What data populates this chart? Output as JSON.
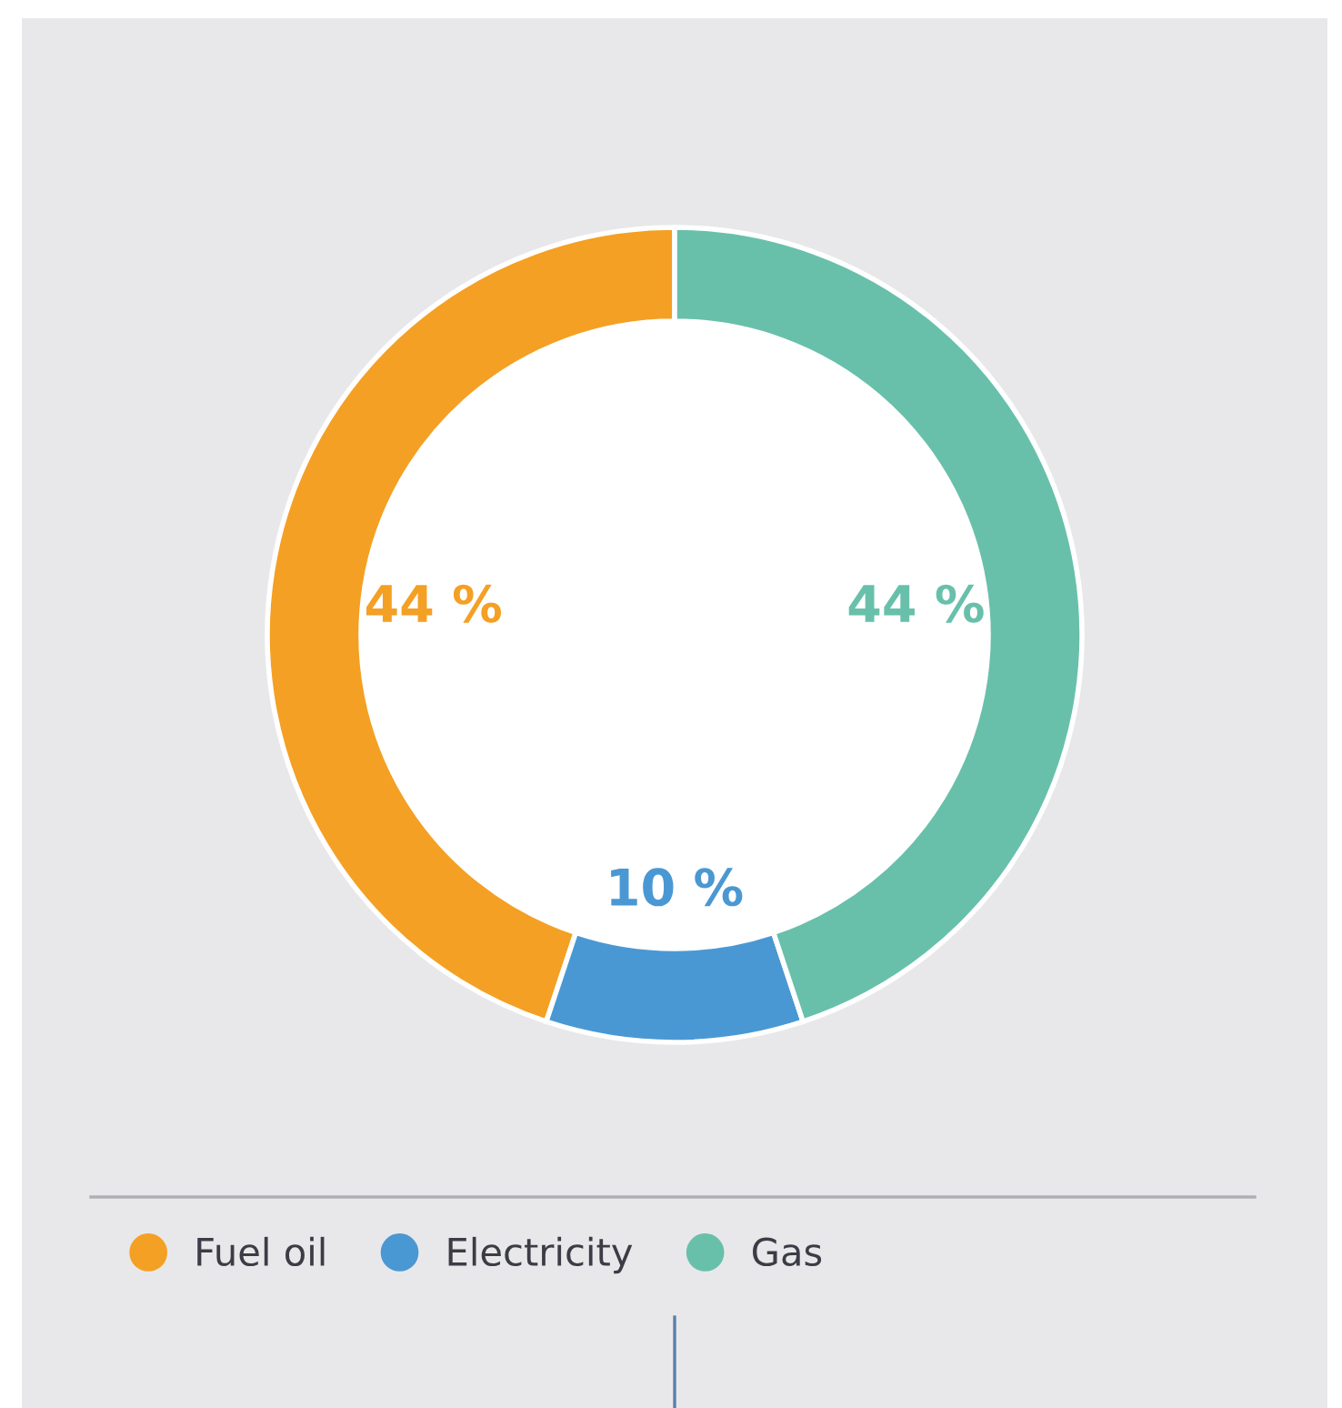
{
  "chart_data": {
    "type": "donut",
    "categories": [
      "Fuel oil",
      "Electricity",
      "Gas"
    ],
    "values": [
      44,
      10,
      44
    ],
    "colors": [
      "#f4a024",
      "#4a98d3",
      "#68c0ab"
    ],
    "value_labels": [
      "44 %",
      "10 %",
      "44 %"
    ],
    "legend": "bottom left"
  }
}
